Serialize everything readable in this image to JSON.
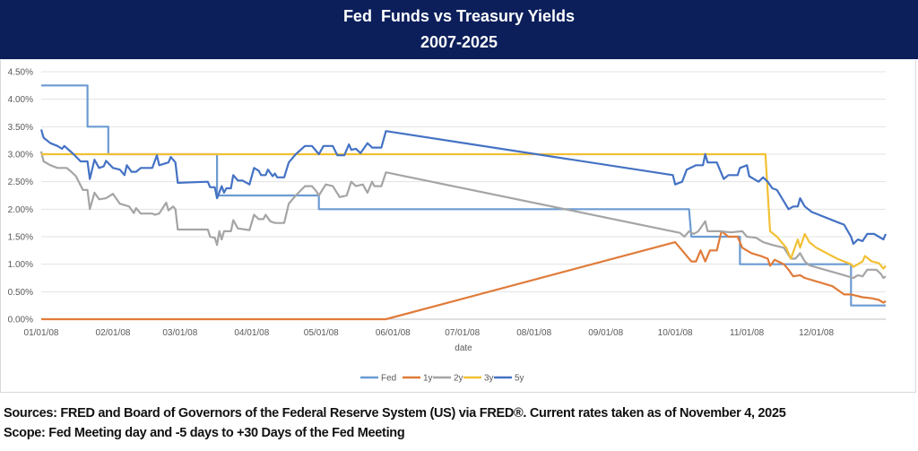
{
  "header": {
    "title": "Fed  Funds vs Treasury Yields",
    "subtitle": "2007-2025"
  },
  "footer": {
    "sources": "Sources: FRED and Board of Governors of the Federal Reserve System (US) via FRED®. Current rates taken as of November 4, 2025",
    "scope": "Scope: Fed Meeting day and -5 days to +30 Days of the Fed Meeting"
  },
  "chart_data": {
    "type": "line",
    "title": "",
    "xlabel": "date",
    "ylabel": "",
    "ylim": [
      0,
      4.5
    ],
    "xlim": [
      "01/01/08",
      "12/31/08"
    ],
    "grid": true,
    "legend": "bottom",
    "y_ticks": [
      "0.00%",
      "0.50%",
      "1.00%",
      "1.50%",
      "2.00%",
      "2.50%",
      "3.00%",
      "3.50%",
      "4.00%",
      "4.50%"
    ],
    "x_ticks": [
      "01/01/08",
      "02/01/08",
      "03/01/08",
      "04/01/08",
      "05/01/08",
      "06/01/08",
      "07/01/08",
      "08/01/08",
      "09/01/08",
      "10/01/08",
      "11/01/08",
      "12/01/08"
    ],
    "series": [
      {
        "name": "Fed",
        "color": "#6b9bd2",
        "points": [
          [
            "01/01/08",
            4.25
          ],
          [
            "01/21/08",
            4.25
          ],
          [
            "01/21/08",
            3.5
          ],
          [
            "01/30/08",
            3.5
          ],
          [
            "01/30/08",
            3.0
          ],
          [
            "03/17/08",
            3.0
          ],
          [
            "03/17/08",
            2.25
          ],
          [
            "04/30/08",
            2.25
          ],
          [
            "04/30/08",
            2.0
          ],
          [
            "10/07/08",
            2.0
          ],
          [
            "10/08/08",
            1.5
          ],
          [
            "10/29/08",
            1.5
          ],
          [
            "10/29/08",
            1.0
          ],
          [
            "12/16/08",
            1.0
          ],
          [
            "12/16/08",
            0.25
          ],
          [
            "12/31/08",
            0.25
          ]
        ]
      },
      {
        "name": "1y",
        "color": "#e07b39",
        "points": [
          [
            "01/01/08",
            0
          ],
          [
            "05/29/08",
            0
          ],
          [
            "10/01/08",
            1.4
          ],
          [
            "10/05/08",
            1.2
          ],
          [
            "10/08/08",
            1.05
          ],
          [
            "10/10/08",
            1.05
          ],
          [
            "10/12/08",
            1.25
          ],
          [
            "10/14/08",
            1.05
          ],
          [
            "10/16/08",
            1.25
          ],
          [
            "10/19/08",
            1.25
          ],
          [
            "10/21/08",
            1.6
          ],
          [
            "10/24/08",
            1.5
          ],
          [
            "10/28/08",
            1.5
          ],
          [
            "10/30/08",
            1.3
          ],
          [
            "11/03/08",
            1.2
          ],
          [
            "11/07/08",
            1.15
          ],
          [
            "11/10/08",
            1.1
          ],
          [
            "11/11/08",
            0.97
          ],
          [
            "11/13/08",
            1.08
          ],
          [
            "11/17/08",
            1.0
          ],
          [
            "11/19/08",
            0.9
          ],
          [
            "11/21/08",
            0.78
          ],
          [
            "11/24/08",
            0.8
          ],
          [
            "11/26/08",
            0.75
          ],
          [
            "12/08/08",
            0.6
          ],
          [
            "12/13/08",
            0.45
          ],
          [
            "12/16/08",
            0.45
          ],
          [
            "12/21/08",
            0.4
          ],
          [
            "12/25/08",
            0.38
          ],
          [
            "12/28/08",
            0.35
          ],
          [
            "12/30/08",
            0.3
          ],
          [
            "12/31/08",
            0.33
          ]
        ]
      },
      {
        "name": "2y",
        "color": "#a5a5a5",
        "points": [
          [
            "01/01/08",
            3.05
          ],
          [
            "01/02/08",
            2.87
          ],
          [
            "01/05/08",
            2.8
          ],
          [
            "01/08/08",
            2.75
          ],
          [
            "01/12/08",
            2.75
          ],
          [
            "01/14/08",
            2.68
          ],
          [
            "01/16/08",
            2.6
          ],
          [
            "01/19/08",
            2.35
          ],
          [
            "01/21/08",
            2.35
          ],
          [
            "01/22/08",
            2.0
          ],
          [
            "01/24/08",
            2.3
          ],
          [
            "01/26/08",
            2.18
          ],
          [
            "01/29/08",
            2.2
          ],
          [
            "02/01/08",
            2.28
          ],
          [
            "02/04/08",
            2.1
          ],
          [
            "02/08/08",
            2.05
          ],
          [
            "02/10/08",
            1.93
          ],
          [
            "02/11/08",
            2.02
          ],
          [
            "02/13/08",
            1.92
          ],
          [
            "02/18/08",
            1.92
          ],
          [
            "02/19/08",
            1.9
          ],
          [
            "02/21/08",
            1.92
          ],
          [
            "02/24/08",
            2.12
          ],
          [
            "02/25/08",
            1.98
          ],
          [
            "02/27/08",
            2.05
          ],
          [
            "02/28/08",
            2.0
          ],
          [
            "02/29/08",
            1.63
          ],
          [
            "03/13/08",
            1.63
          ],
          [
            "03/14/08",
            1.5
          ],
          [
            "03/16/08",
            1.48
          ],
          [
            "03/17/08",
            1.35
          ],
          [
            "03/18/08",
            1.6
          ],
          [
            "03/19/08",
            1.45
          ],
          [
            "03/20/08",
            1.6
          ],
          [
            "03/23/08",
            1.6
          ],
          [
            "03/24/08",
            1.8
          ],
          [
            "03/26/08",
            1.65
          ],
          [
            "03/31/08",
            1.62
          ],
          [
            "04/02/08",
            1.9
          ],
          [
            "04/04/08",
            1.82
          ],
          [
            "04/06/08",
            1.82
          ],
          [
            "04/07/08",
            1.9
          ],
          [
            "04/09/08",
            1.78
          ],
          [
            "04/11/08",
            1.75
          ],
          [
            "04/15/08",
            1.75
          ],
          [
            "04/17/08",
            2.1
          ],
          [
            "04/20/08",
            2.25
          ],
          [
            "04/24/08",
            2.42
          ],
          [
            "04/27/08",
            2.42
          ],
          [
            "04/29/08",
            2.32
          ],
          [
            "04/30/08",
            2.25
          ],
          [
            "05/03/08",
            2.45
          ],
          [
            "05/06/08",
            2.42
          ],
          [
            "05/09/08",
            2.22
          ],
          [
            "05/12/08",
            2.25
          ],
          [
            "05/14/08",
            2.5
          ],
          [
            "05/16/08",
            2.42
          ],
          [
            "05/19/08",
            2.45
          ],
          [
            "05/21/08",
            2.3
          ],
          [
            "05/23/08",
            2.5
          ],
          [
            "05/24/08",
            2.42
          ],
          [
            "05/27/08",
            2.42
          ],
          [
            "05/29/08",
            2.67
          ],
          [
            "10/03/08",
            1.57
          ],
          [
            "10/05/08",
            1.5
          ],
          [
            "10/07/08",
            1.6
          ],
          [
            "10/09/08",
            1.55
          ],
          [
            "10/11/08",
            1.6
          ],
          [
            "10/14/08",
            1.78
          ],
          [
            "10/15/08",
            1.6
          ],
          [
            "10/20/08",
            1.6
          ],
          [
            "10/25/08",
            1.58
          ],
          [
            "10/30/08",
            1.6
          ],
          [
            "11/01/08",
            1.5
          ],
          [
            "11/05/08",
            1.48
          ],
          [
            "11/08/08",
            1.4
          ],
          [
            "11/12/08",
            1.35
          ],
          [
            "11/17/08",
            1.3
          ],
          [
            "11/20/08",
            1.1
          ],
          [
            "11/22/08",
            1.1
          ],
          [
            "11/24/08",
            1.2
          ],
          [
            "11/26/08",
            1.05
          ],
          [
            "11/28/08",
            0.98
          ],
          [
            "12/13/08",
            0.8
          ],
          [
            "12/17/08",
            0.75
          ],
          [
            "12/19/08",
            0.8
          ],
          [
            "12/21/08",
            0.78
          ],
          [
            "12/23/08",
            0.9
          ],
          [
            "12/27/08",
            0.9
          ],
          [
            "12/29/08",
            0.82
          ],
          [
            "12/30/08",
            0.75
          ],
          [
            "12/31/08",
            0.78
          ]
        ]
      },
      {
        "name": "3y",
        "color": "#f2c034",
        "points": [
          [
            "01/01/08",
            3.0
          ],
          [
            "11/09/08",
            3.0
          ],
          [
            "11/11/08",
            1.6
          ],
          [
            "11/14/08",
            1.5
          ],
          [
            "11/18/08",
            1.3
          ],
          [
            "11/20/08",
            1.1
          ],
          [
            "11/23/08",
            1.45
          ],
          [
            "11/24/08",
            1.3
          ],
          [
            "11/26/08",
            1.55
          ],
          [
            "11/28/08",
            1.4
          ],
          [
            "12/01/08",
            1.3
          ],
          [
            "12/10/08",
            1.1
          ],
          [
            "12/16/08",
            1.0
          ],
          [
            "12/17/08",
            0.95
          ],
          [
            "12/19/08",
            1.0
          ],
          [
            "12/21/08",
            1.05
          ],
          [
            "12/22/08",
            1.15
          ],
          [
            "12/25/08",
            1.05
          ],
          [
            "12/28/08",
            1.02
          ],
          [
            "12/30/08",
            0.92
          ],
          [
            "12/31/08",
            0.97
          ]
        ]
      },
      {
        "name": "5y",
        "color": "#4472c4",
        "points": [
          [
            "01/01/08",
            3.45
          ],
          [
            "01/02/08",
            3.3
          ],
          [
            "01/05/08",
            3.2
          ],
          [
            "01/08/08",
            3.15
          ],
          [
            "01/10/08",
            3.1
          ],
          [
            "01/11/08",
            3.15
          ],
          [
            "01/15/08",
            3.0
          ],
          [
            "01/18/08",
            2.87
          ],
          [
            "01/21/08",
            2.87
          ],
          [
            "01/22/08",
            2.55
          ],
          [
            "01/24/08",
            2.9
          ],
          [
            "01/26/08",
            2.75
          ],
          [
            "01/28/08",
            2.78
          ],
          [
            "01/29/08",
            2.88
          ],
          [
            "02/01/08",
            2.75
          ],
          [
            "02/04/08",
            2.72
          ],
          [
            "02/06/08",
            2.62
          ],
          [
            "02/07/08",
            2.8
          ],
          [
            "02/09/08",
            2.68
          ],
          [
            "02/11/08",
            2.68
          ],
          [
            "02/13/08",
            2.75
          ],
          [
            "02/18/08",
            2.75
          ],
          [
            "02/20/08",
            2.98
          ],
          [
            "02/21/08",
            2.8
          ],
          [
            "02/25/08",
            2.85
          ],
          [
            "02/26/08",
            2.95
          ],
          [
            "02/28/08",
            2.85
          ],
          [
            "02/29/08",
            2.48
          ],
          [
            "03/13/08",
            2.5
          ],
          [
            "03/14/08",
            2.4
          ],
          [
            "03/16/08",
            2.4
          ],
          [
            "03/17/08",
            2.2
          ],
          [
            "03/19/08",
            2.42
          ],
          [
            "03/20/08",
            2.3
          ],
          [
            "03/21/08",
            2.38
          ],
          [
            "03/23/08",
            2.38
          ],
          [
            "03/24/08",
            2.62
          ],
          [
            "03/26/08",
            2.52
          ],
          [
            "03/28/08",
            2.52
          ],
          [
            "03/31/08",
            2.45
          ],
          [
            "04/02/08",
            2.75
          ],
          [
            "04/04/08",
            2.7
          ],
          [
            "04/05/08",
            2.62
          ],
          [
            "04/07/08",
            2.62
          ],
          [
            "04/08/08",
            2.72
          ],
          [
            "04/10/08",
            2.6
          ],
          [
            "04/11/08",
            2.65
          ],
          [
            "04/12/08",
            2.58
          ],
          [
            "04/15/08",
            2.58
          ],
          [
            "04/17/08",
            2.85
          ],
          [
            "04/20/08",
            3.0
          ],
          [
            "04/24/08",
            3.15
          ],
          [
            "04/27/08",
            3.15
          ],
          [
            "04/30/08",
            3.0
          ],
          [
            "05/02/08",
            3.15
          ],
          [
            "05/06/08",
            3.15
          ],
          [
            "05/08/08",
            2.98
          ],
          [
            "05/11/08",
            2.98
          ],
          [
            "05/13/08",
            3.18
          ],
          [
            "05/14/08",
            3.08
          ],
          [
            "05/16/08",
            3.1
          ],
          [
            "05/18/08",
            3.02
          ],
          [
            "05/21/08",
            3.2
          ],
          [
            "05/23/08",
            3.12
          ],
          [
            "05/27/08",
            3.12
          ],
          [
            "05/29/08",
            3.42
          ],
          [
            "09/30/08",
            2.62
          ],
          [
            "10/01/08",
            2.45
          ],
          [
            "10/04/08",
            2.5
          ],
          [
            "10/06/08",
            2.72
          ],
          [
            "10/10/08",
            2.8
          ],
          [
            "10/13/08",
            2.8
          ],
          [
            "10/14/08",
            3.0
          ],
          [
            "10/15/08",
            2.85
          ],
          [
            "10/19/08",
            2.85
          ],
          [
            "10/22/08",
            2.55
          ],
          [
            "10/24/08",
            2.62
          ],
          [
            "10/28/08",
            2.62
          ],
          [
            "10/29/08",
            2.75
          ],
          [
            "11/01/08",
            2.8
          ],
          [
            "11/02/08",
            2.6
          ],
          [
            "11/06/08",
            2.5
          ],
          [
            "11/08/08",
            2.58
          ],
          [
            "11/10/08",
            2.5
          ],
          [
            "11/12/08",
            2.38
          ],
          [
            "11/14/08",
            2.35
          ],
          [
            "11/15/08",
            2.28
          ],
          [
            "11/19/08",
            2.0
          ],
          [
            "11/21/08",
            2.05
          ],
          [
            "11/23/08",
            2.05
          ],
          [
            "11/24/08",
            2.2
          ],
          [
            "11/26/08",
            2.05
          ],
          [
            "11/29/08",
            1.95
          ],
          [
            "12/11/08",
            1.75
          ],
          [
            "12/13/08",
            1.72
          ],
          [
            "12/16/08",
            1.5
          ],
          [
            "12/17/08",
            1.37
          ],
          [
            "12/19/08",
            1.45
          ],
          [
            "12/21/08",
            1.42
          ],
          [
            "12/23/08",
            1.55
          ],
          [
            "12/26/08",
            1.55
          ],
          [
            "12/28/08",
            1.5
          ],
          [
            "12/30/08",
            1.45
          ],
          [
            "12/31/08",
            1.55
          ]
        ]
      }
    ]
  }
}
